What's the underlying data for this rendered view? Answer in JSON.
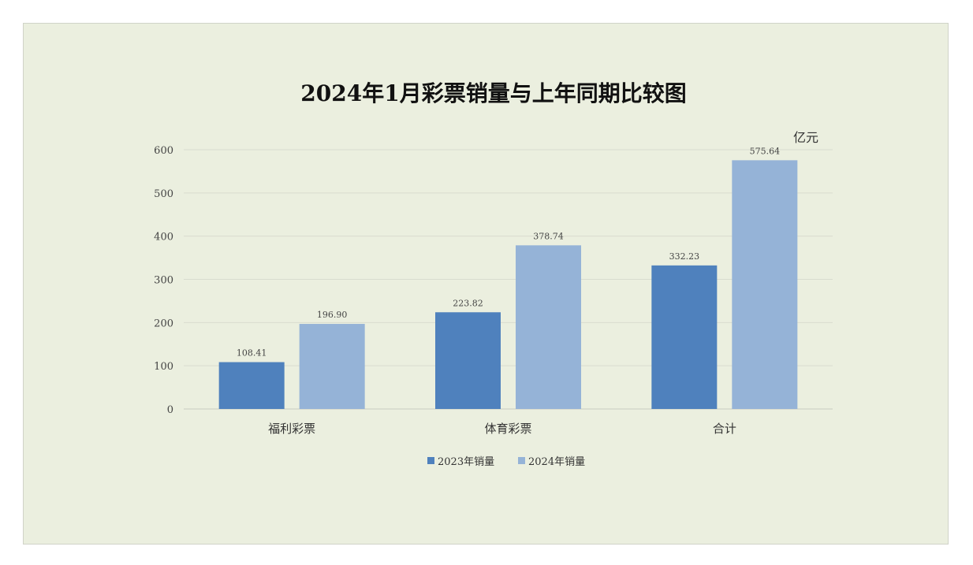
{
  "chart_data": {
    "type": "bar",
    "title": "2024年1月彩票销量与上年同期比较图",
    "unit": "亿元",
    "categories": [
      "福利彩票",
      "体育彩票",
      "合计"
    ],
    "series": [
      {
        "name": "2023年销量",
        "values": [
          108.41,
          223.82,
          332.23
        ],
        "labels": [
          "108.41",
          "223.82",
          "332.23"
        ],
        "color": "#4f81bd"
      },
      {
        "name": "2024年销量",
        "values": [
          196.9,
          378.74,
          575.64
        ],
        "labels": [
          "196.90",
          "378.74",
          "575.64"
        ],
        "color": "#95b3d7"
      }
    ],
    "ylim": [
      0,
      600
    ],
    "yticks": [
      0,
      100,
      200,
      300,
      400,
      500,
      600
    ],
    "grid": true,
    "legend_position": "bottom"
  }
}
